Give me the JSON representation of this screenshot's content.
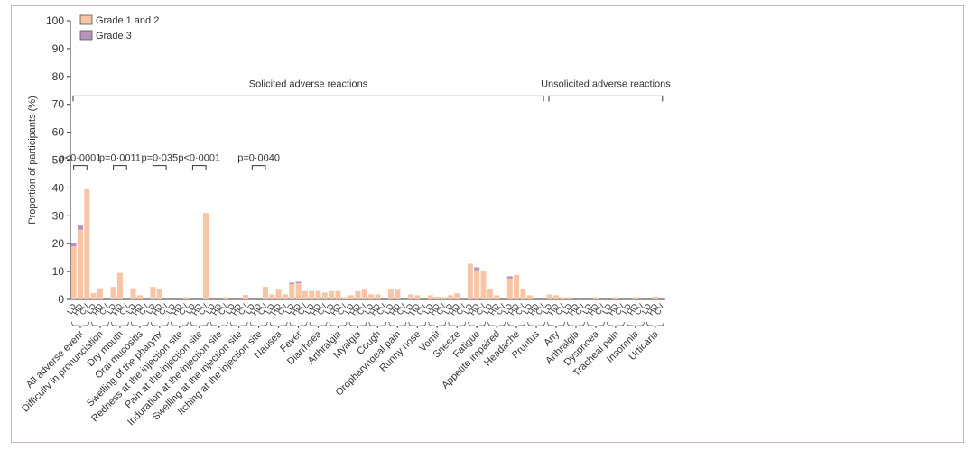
{
  "colors": {
    "grade12": "#f7c4a5",
    "grade3": "#b594bd",
    "axis": "#333333",
    "frame": "#d4b5bd"
  },
  "chart_data": {
    "type": "bar",
    "stacked": true,
    "ylabel": "Proportion of participants (%)",
    "ylim": [
      0,
      100
    ],
    "yticks": [
      "0",
      "10",
      "20",
      "30",
      "40",
      "50",
      "60",
      "70",
      "80",
      "90",
      "100"
    ],
    "legend": {
      "position": "top-left",
      "items": [
        {
          "key": "grade12",
          "label": "Grade 1 and 2"
        },
        {
          "key": "grade3",
          "label": "Grade 3"
        }
      ]
    },
    "groups": [
      {
        "name": "All adverse event",
        "sub": [
          "LD",
          "HD",
          "CV"
        ],
        "g12": [
          19,
          25,
          39.5
        ],
        "g3": [
          1.2,
          1.5,
          0
        ]
      },
      {
        "name": "Difficulty in pronunciation",
        "sub": [
          "LD",
          "HD",
          "CV"
        ],
        "g12": [
          2.3,
          4,
          0
        ],
        "g3": [
          0,
          0,
          0
        ]
      },
      {
        "name": "Dry mouth",
        "sub": [
          "LD",
          "HD",
          "CV"
        ],
        "g12": [
          4.5,
          9.5,
          0
        ],
        "g3": [
          0,
          0,
          0
        ]
      },
      {
        "name": "Oral mucositis",
        "sub": [
          "LD",
          "HD",
          "CV"
        ],
        "g12": [
          4,
          1.5,
          0
        ],
        "g3": [
          0,
          0,
          0
        ]
      },
      {
        "name": "Swelling of the pharynx",
        "sub": [
          "LD",
          "HD",
          "CV"
        ],
        "g12": [
          4.5,
          3.8,
          0
        ],
        "g3": [
          0,
          0,
          0
        ]
      },
      {
        "name": "Redness at the injection site",
        "sub": [
          "LD",
          "HD",
          "CV"
        ],
        "g12": [
          0,
          0,
          0.8
        ],
        "g3": [
          0,
          0,
          0
        ]
      },
      {
        "name": "Pain at the injection site",
        "sub": [
          "LD",
          "HD",
          "CV"
        ],
        "g12": [
          0,
          0,
          31
        ],
        "g3": [
          0,
          0,
          0
        ]
      },
      {
        "name": "Induration at the injection site",
        "sub": [
          "LD",
          "HD",
          "CV"
        ],
        "g12": [
          0,
          0,
          0.8
        ],
        "g3": [
          0,
          0,
          0
        ]
      },
      {
        "name": "Swelling at the injection site",
        "sub": [
          "LD",
          "HD",
          "CV"
        ],
        "g12": [
          0,
          0,
          1.6
        ],
        "g3": [
          0,
          0,
          0
        ]
      },
      {
        "name": "Itching at the injection site",
        "sub": [
          "LD",
          "HD",
          "CV"
        ],
        "g12": [
          0,
          0,
          4.5
        ],
        "g3": [
          0,
          0,
          0
        ]
      },
      {
        "name": "Nausea",
        "sub": [
          "LD",
          "HD",
          "CV"
        ],
        "g12": [
          1.8,
          3.5,
          1.8
        ],
        "g3": [
          0,
          0,
          0
        ]
      },
      {
        "name": "Fever",
        "sub": [
          "LD",
          "HD",
          "CV"
        ],
        "g12": [
          5.5,
          5.8,
          3
        ],
        "g3": [
          0.5,
          0.5,
          0
        ]
      },
      {
        "name": "Diarrhoea",
        "sub": [
          "LD",
          "HD",
          "CV"
        ],
        "g12": [
          3,
          3,
          2.5
        ],
        "g3": [
          0,
          0,
          0
        ]
      },
      {
        "name": "Arthralgia",
        "sub": [
          "LD",
          "HD",
          "CV"
        ],
        "g12": [
          3,
          3,
          0.8
        ],
        "g3": [
          0,
          0,
          0
        ]
      },
      {
        "name": "Myalgia",
        "sub": [
          "LD",
          "HD",
          "CV"
        ],
        "g12": [
          1.5,
          3,
          3.5
        ],
        "g3": [
          0,
          0,
          0
        ]
      },
      {
        "name": "Cough",
        "sub": [
          "LD",
          "HD",
          "CV"
        ],
        "g12": [
          1.8,
          1.8,
          0
        ],
        "g3": [
          0,
          0,
          0
        ]
      },
      {
        "name": "Oropharyngeal pain",
        "sub": [
          "LD",
          "HD",
          "CV"
        ],
        "g12": [
          3.5,
          3.5,
          0
        ],
        "g3": [
          0,
          0,
          0
        ]
      },
      {
        "name": "Runny nose",
        "sub": [
          "LD",
          "HD",
          "CV"
        ],
        "g12": [
          1.8,
          1.5,
          0
        ],
        "g3": [
          0,
          0,
          0
        ]
      },
      {
        "name": "Vomit",
        "sub": [
          "LD",
          "HD",
          "CV"
        ],
        "g12": [
          1.5,
          1,
          0.8
        ],
        "g3": [
          0,
          0,
          0
        ]
      },
      {
        "name": "Sneeze",
        "sub": [
          "LD",
          "HD",
          "CV"
        ],
        "g12": [
          1.5,
          2.2,
          0
        ],
        "g3": [
          0,
          0,
          0
        ]
      },
      {
        "name": "Fatigue",
        "sub": [
          "LD",
          "HD",
          "CV"
        ],
        "g12": [
          12.8,
          10.5,
          10.3
        ],
        "g3": [
          0,
          1,
          0
        ]
      },
      {
        "name": "Appetite impaired",
        "sub": [
          "LD",
          "HD",
          "CV"
        ],
        "g12": [
          3.8,
          1.5,
          0
        ],
        "g3": [
          0,
          0,
          0
        ]
      },
      {
        "name": "Headache",
        "sub": [
          "LD",
          "HD",
          "CV"
        ],
        "g12": [
          7.5,
          8.8,
          3.8
        ],
        "g3": [
          0.8,
          0,
          0
        ]
      },
      {
        "name": "Pruritus",
        "sub": [
          "LD",
          "HD",
          "CV"
        ],
        "g12": [
          1.5,
          0,
          0
        ],
        "g3": [
          0,
          0,
          0
        ]
      },
      {
        "name": "Any",
        "sub": [
          "LD",
          "HD",
          "CV"
        ],
        "g12": [
          1.8,
          1.5,
          0.8
        ],
        "g3": [
          0,
          0,
          0
        ]
      },
      {
        "name": "Arthralgia",
        "sub": [
          "LD",
          "HD",
          "CV"
        ],
        "g12": [
          0.8,
          0,
          0
        ],
        "g3": [
          0,
          0,
          0
        ]
      },
      {
        "name": "Dyspnoea",
        "sub": [
          "LD",
          "HD",
          "CV"
        ],
        "g12": [
          0,
          0.8,
          0
        ],
        "g3": [
          0,
          0,
          0
        ]
      },
      {
        "name": "Tracheal pain",
        "sub": [
          "LD",
          "HD",
          "CV"
        ],
        "g12": [
          0,
          0.8,
          0
        ],
        "g3": [
          0,
          0,
          0
        ]
      },
      {
        "name": "Insomnia",
        "sub": [
          "LD",
          "HD",
          "CV"
        ],
        "g12": [
          0,
          0.8,
          0
        ],
        "g3": [
          0,
          0,
          0
        ]
      },
      {
        "name": "Urticaria",
        "sub": [
          "LD",
          "HD",
          "CV"
        ],
        "g12": [
          0,
          1,
          0
        ],
        "g3": [
          0,
          0,
          0
        ]
      }
    ],
    "sections": [
      {
        "label": "Solicited adverse reactions",
        "from": 0,
        "to": 23,
        "level": 73
      },
      {
        "label": "Unsolicited adverse reactions",
        "from": 24,
        "to": 29,
        "level": 73
      }
    ],
    "pvalues": [
      {
        "label": "p<0·0001",
        "group": 0,
        "level": 48
      },
      {
        "label": "p=0·0011",
        "group": 2,
        "level": 48
      },
      {
        "label": "p=0·035",
        "group": 4,
        "level": 48
      },
      {
        "label": "p<0·0001",
        "group": 6,
        "level": 48
      },
      {
        "label": "p=0·0040",
        "group": 9,
        "level": 48
      }
    ]
  }
}
